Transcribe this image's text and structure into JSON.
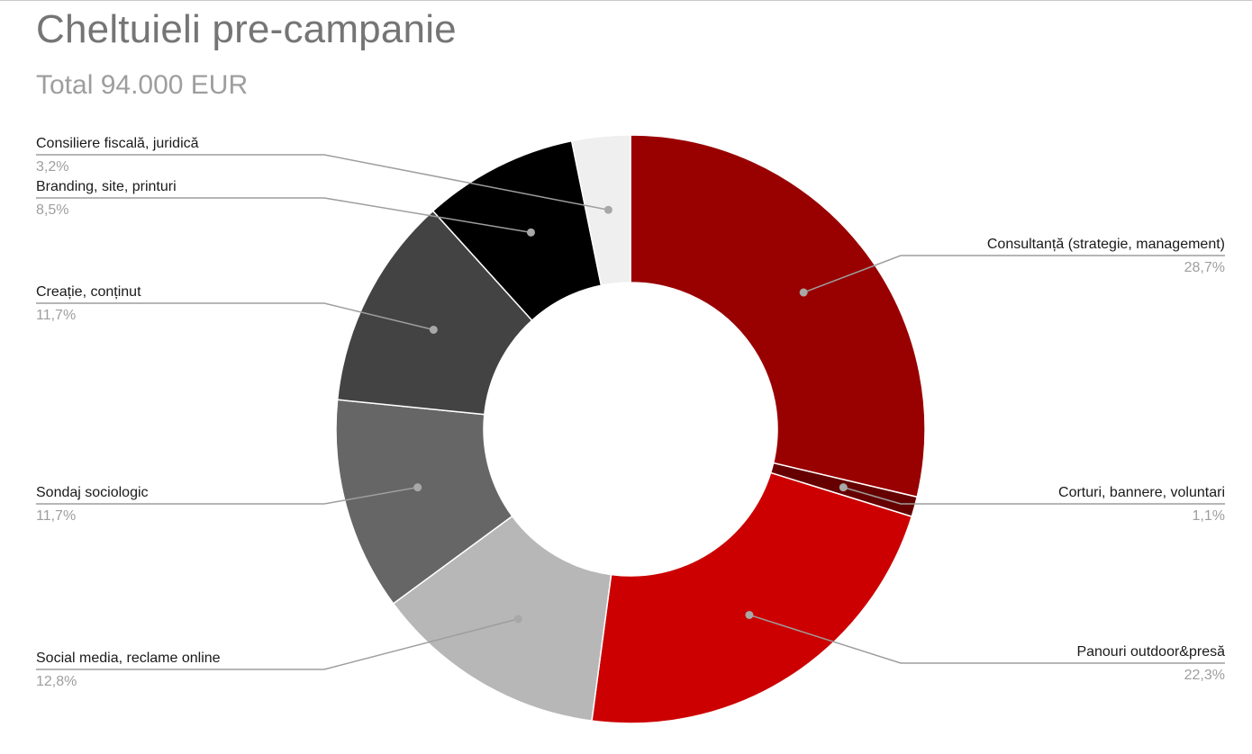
{
  "header": {
    "title": "Cheltuieli pre-campanie",
    "subtitle": "Total 94.000 EUR"
  },
  "chart_data": {
    "type": "pie",
    "variant": "donut",
    "title": "Cheltuieli pre-campanie",
    "subtitle": "Total 94.000 EUR",
    "slices": [
      {
        "label": "Consultanță (strategie, management)",
        "value": 28.7,
        "value_text": "28,7%",
        "color": "#990000"
      },
      {
        "label": "Corturi, bannere, voluntari",
        "value": 1.1,
        "value_text": "1,1%",
        "color": "#660000"
      },
      {
        "label": "Panouri outdoor&presă",
        "value": 22.3,
        "value_text": "22,3%",
        "color": "#cc0000"
      },
      {
        "label": "Social media, reclame online",
        "value": 12.8,
        "value_text": "12,8%",
        "color": "#b7b7b7"
      },
      {
        "label": "Sondaj sociologic",
        "value": 11.7,
        "value_text": "11,7%",
        "color": "#666666"
      },
      {
        "label": "Creație, conținut",
        "value": 11.7,
        "value_text": "11,7%",
        "color": "#434343"
      },
      {
        "label": "Branding, site, printuri",
        "value": 8.5,
        "value_text": "8,5%",
        "color": "#000000"
      },
      {
        "label": "Consiliere fiscală, juridică",
        "value": 3.2,
        "value_text": "3,2%",
        "color": "#efefef"
      }
    ],
    "legend": "none",
    "label_style": "callout-lines"
  }
}
